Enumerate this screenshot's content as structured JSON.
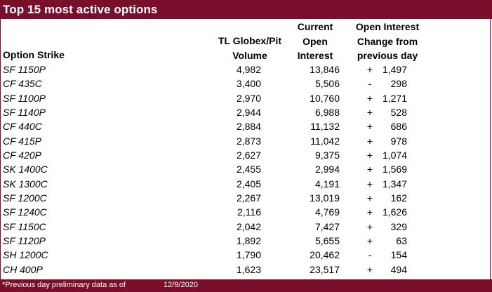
{
  "title": "Top 15 most active options",
  "headers": {
    "strike": "Option Strike",
    "volume_line1": "TL Globex/Pit",
    "volume_line2": "Volume",
    "oi_line1": "Current",
    "oi_line2": "Open",
    "oi_line3": "Interest",
    "chg_line1": "Open Interest",
    "chg_line2": "Change from",
    "chg_line3": "previous day"
  },
  "rows": [
    {
      "strike": "SF 1150P",
      "volume": "4,982",
      "oi": "13,846",
      "sign": "+",
      "change": "1,497"
    },
    {
      "strike": "CF 435C",
      "volume": "3,400",
      "oi": "5,506",
      "sign": "-",
      "change": "298"
    },
    {
      "strike": "SF 1100P",
      "volume": "2,970",
      "oi": "10,760",
      "sign": "+",
      "change": "1,271"
    },
    {
      "strike": "SF 1140P",
      "volume": "2,944",
      "oi": "6,988",
      "sign": "+",
      "change": "528"
    },
    {
      "strike": "CF 440C",
      "volume": "2,884",
      "oi": "11,132",
      "sign": "+",
      "change": "686"
    },
    {
      "strike": "CF 415P",
      "volume": "2,873",
      "oi": "11,042",
      "sign": "+",
      "change": "978"
    },
    {
      "strike": "CF 420P",
      "volume": "2,627",
      "oi": "9,375",
      "sign": "+",
      "change": "1,074"
    },
    {
      "strike": "SK 1400C",
      "volume": "2,455",
      "oi": "2,994",
      "sign": "+",
      "change": "1,569"
    },
    {
      "strike": "SK 1300C",
      "volume": "2,405",
      "oi": "4,191",
      "sign": "+",
      "change": "1,347"
    },
    {
      "strike": "SF 1200C",
      "volume": "2,267",
      "oi": "13,019",
      "sign": "+",
      "change": "162"
    },
    {
      "strike": "SF 1240C",
      "volume": "2,116",
      "oi": "4,769",
      "sign": "+",
      "change": "1,626"
    },
    {
      "strike": "SF 1150C",
      "volume": "2,042",
      "oi": "7,427",
      "sign": "+",
      "change": "329"
    },
    {
      "strike": "SF 1120P",
      "volume": "1,892",
      "oi": "5,655",
      "sign": "+",
      "change": "63"
    },
    {
      "strike": "SH 1200C",
      "volume": "1,790",
      "oi": "20,462",
      "sign": "-",
      "change": "154"
    },
    {
      "strike": "CH 400P",
      "volume": "1,623",
      "oi": "23,517",
      "sign": "+",
      "change": "494"
    }
  ],
  "footer": {
    "note": "*Previous day preliminary data as of",
    "date": "12/9/2020"
  },
  "colors": {
    "accent": "#7a0f2c",
    "text": "#000000",
    "background": "#ffffff"
  }
}
